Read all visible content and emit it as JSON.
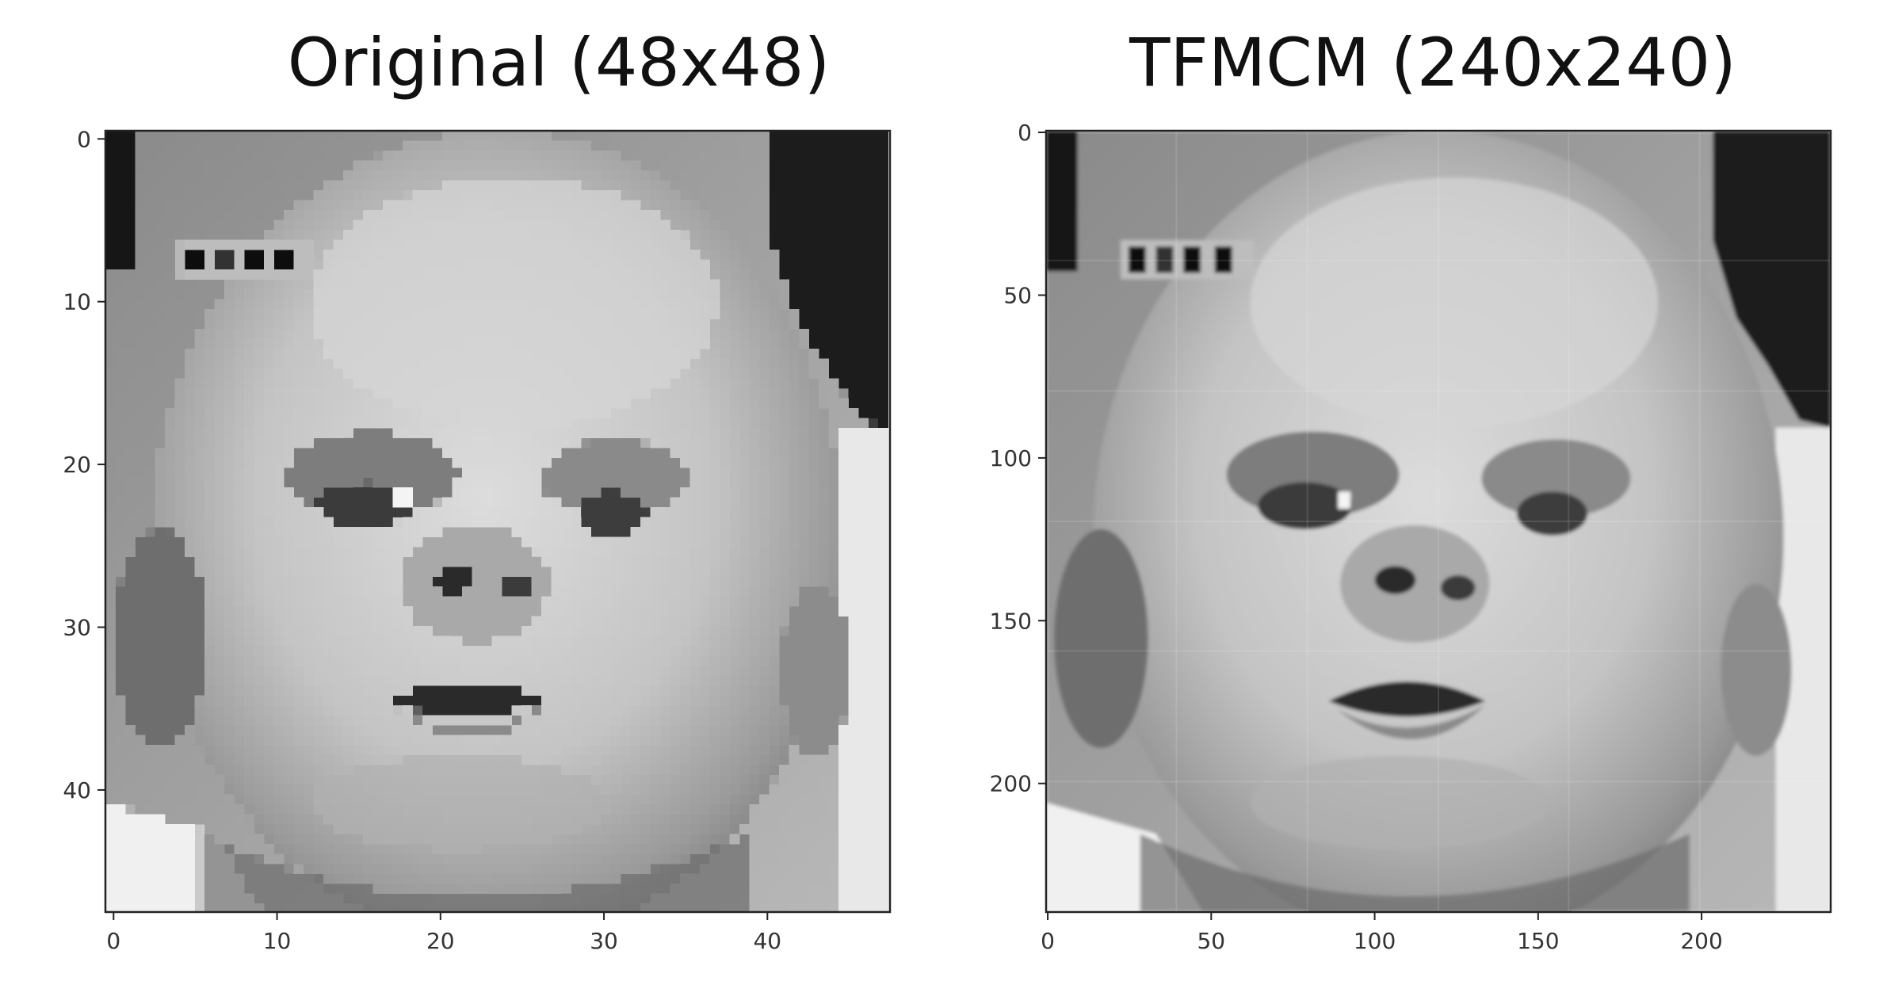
{
  "panels": [
    {
      "title": "Original (48x48)",
      "x_ticks": [
        "0",
        "10",
        "20",
        "30",
        "40"
      ],
      "y_ticks": [
        "0",
        "10",
        "20",
        "30",
        "40"
      ],
      "pixel_size": 48,
      "style": "pixelated"
    },
    {
      "title": "TFMCM (240x240)",
      "x_ticks": [
        "0",
        "50",
        "100",
        "150",
        "200"
      ],
      "y_ticks": [
        "0",
        "50",
        "100",
        "150",
        "200"
      ],
      "pixel_size": 240,
      "style": "smooth"
    }
  ],
  "colors": {
    "background": "#ffffff",
    "axis": "#222222",
    "image_tone": "grayscale"
  }
}
